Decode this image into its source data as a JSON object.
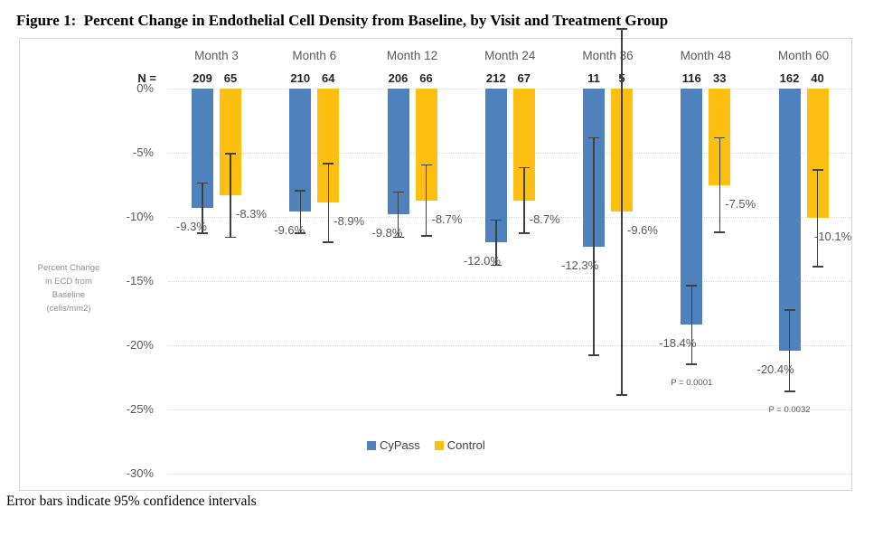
{
  "title": "Figure 1:  Percent Change in Endothelial Cell Density from Baseline, by Visit and Treatment Group",
  "footnote": "Error bars indicate 95% confidence intervals",
  "chart_data": {
    "type": "bar",
    "title": "Percent Change in Endothelial Cell Density from Baseline, by Visit and Treatment Group",
    "categories": [
      "Month 3",
      "Month 6",
      "Month 12",
      "Month 24",
      "Month 36",
      "Month 48",
      "Month 60"
    ],
    "n_prefix": "N =",
    "series": [
      {
        "name": "CyPass",
        "color": "#4F81BD",
        "n": [
          "209",
          "210",
          "206",
          "212",
          "11",
          "116",
          "162"
        ],
        "values": [
          -9.3,
          -9.6,
          -9.8,
          -12.0,
          -12.3,
          -18.4,
          -20.4
        ],
        "value_labels": [
          "-9.3%",
          "-9.6%",
          "-9.8%",
          "-12.0%",
          "-12.3%",
          "-18.4%",
          "-20.4%"
        ],
        "ci_lower": [
          -11.3,
          -11.3,
          -11.6,
          -13.8,
          -20.8,
          -21.5,
          -23.6
        ]
      },
      {
        "name": "Control",
        "color": "#FDC010",
        "n": [
          "65",
          "64",
          "66",
          "67",
          "5",
          "33",
          "40"
        ],
        "values": [
          -8.3,
          -8.9,
          -8.7,
          -8.7,
          -9.6,
          -7.5,
          -10.1
        ],
        "value_labels": [
          "-8.3%",
          "-8.9%",
          "-8.7%",
          "-8.7%",
          "-9.6%",
          "-7.5%",
          "-10.1%"
        ],
        "ci_lower": [
          -11.6,
          -12.0,
          -11.5,
          -11.3,
          -23.9,
          -11.2,
          -13.9
        ]
      }
    ],
    "p_values": [
      {
        "group_index": 5,
        "label": "P = 0.0001"
      },
      {
        "group_index": 6,
        "label": "P = 0.0032"
      }
    ],
    "ylabel_lines": [
      "Percent Change",
      "in ECD from",
      "Baseline",
      "(cells/mm2)"
    ],
    "yticks": [
      {
        "label": "0%",
        "value": 0
      },
      {
        "label": "-5%",
        "value": -5
      },
      {
        "label": "-10%",
        "value": -10
      },
      {
        "label": "-15%",
        "value": -15
      },
      {
        "label": "-20%",
        "value": -20
      },
      {
        "label": "-25%",
        "value": -25
      },
      {
        "label": "-30%",
        "value": -30
      }
    ],
    "ylim": [
      -30,
      0
    ],
    "legend_position": "bottom-center",
    "grid": "horizontal-dotted",
    "error_bar_note": "95% confidence intervals"
  }
}
